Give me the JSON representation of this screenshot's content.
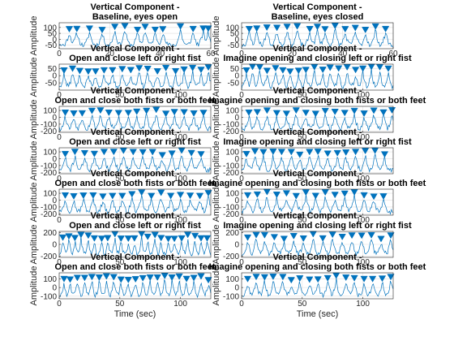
{
  "figure": {
    "colors": {
      "series": "#0072bd",
      "axis": "#262626",
      "grid": "#dfdfdf",
      "background": "#ffffff"
    },
    "marker_icon": "triangle-down-marker"
  },
  "chart_data": [
    {
      "type": "line",
      "col": 0,
      "row": 0,
      "title_lines": [
        "Vertical Component -",
        "Baseline, eyes open"
      ],
      "ylabel": "Amplitude",
      "xlabel": "",
      "xlim": [
        0,
        60
      ],
      "xticks": [
        0,
        20,
        40,
        60
      ],
      "ylim": [
        -80,
        140
      ],
      "yticks": [
        -50,
        0,
        50,
        100
      ],
      "grid": true,
      "seed": 11,
      "marker_times": [
        4,
        7,
        12,
        17,
        22,
        26,
        31,
        34,
        38,
        41,
        48,
        53,
        57,
        59
      ]
    },
    {
      "type": "line",
      "col": 1,
      "row": 0,
      "title_lines": [
        "Vertical Component -",
        "Baseline, eyes closed"
      ],
      "ylabel": "Amplitude",
      "xlabel": "",
      "xlim": [
        0,
        60
      ],
      "xticks": [
        0,
        20,
        40,
        60
      ],
      "ylim": [
        -80,
        140
      ],
      "yticks": [
        -50,
        0,
        50,
        100
      ],
      "grid": true,
      "seed": 23,
      "marker_times": [
        3,
        6,
        10,
        14,
        18,
        22,
        27,
        30,
        33,
        37,
        41,
        45,
        49,
        53,
        57
      ]
    },
    {
      "type": "line",
      "col": 0,
      "row": 1,
      "title_lines": [
        "Vertical Component -",
        "Open and close left or right fist"
      ],
      "ylabel": "Amplitude",
      "xlabel": "",
      "xlim": [
        0,
        125
      ],
      "xticks": [
        0,
        50,
        100
      ],
      "ylim": [
        -100,
        80
      ],
      "yticks": [
        -50,
        0,
        50
      ],
      "grid": true,
      "seed": 37,
      "marker_times": [
        4,
        11,
        17,
        24,
        30,
        37,
        44,
        52,
        59,
        66,
        73,
        81,
        88,
        96,
        103,
        110,
        117,
        123
      ]
    },
    {
      "type": "line",
      "col": 1,
      "row": 1,
      "title_lines": [
        "Vertical Component -",
        "Imagine opening and closing left or right fist"
      ],
      "ylabel": "Amplitude",
      "xlabel": "",
      "xlim": [
        0,
        125
      ],
      "xticks": [
        0,
        50,
        100
      ],
      "ylim": [
        -100,
        80
      ],
      "yticks": [
        -50,
        0,
        50
      ],
      "grid": true,
      "seed": 41,
      "marker_times": [
        4,
        9,
        15,
        21,
        28,
        34,
        40,
        47,
        53,
        60,
        67,
        73,
        80,
        87,
        94,
        100,
        107,
        114,
        121
      ]
    },
    {
      "type": "line",
      "col": 0,
      "row": 2,
      "title_lines": [
        "Vertical Component -",
        "Open and close both fists or both feet"
      ],
      "ylabel": "Amplitude",
      "xlabel": "",
      "xlim": [
        0,
        125
      ],
      "xticks": [
        0,
        50,
        100
      ],
      "ylim": [
        -220,
        160
      ],
      "yticks": [
        -200,
        -100,
        0,
        100
      ],
      "grid": true,
      "seed": 53,
      "marker_times": [
        5,
        12,
        19,
        27,
        34,
        41,
        49,
        57,
        64,
        72,
        80,
        88,
        95,
        103,
        111,
        119
      ]
    },
    {
      "type": "line",
      "col": 1,
      "row": 2,
      "title_lines": [
        "Vertical Component -",
        "Imagine opening and closing both fists or both feet"
      ],
      "ylabel": "Amplitude",
      "xlabel": "",
      "xlim": [
        0,
        125
      ],
      "xticks": [
        0,
        50,
        100
      ],
      "ylim": [
        -220,
        160
      ],
      "yticks": [
        -200,
        -100,
        0,
        100
      ],
      "grid": true,
      "seed": 67,
      "marker_times": [
        6,
        13,
        21,
        29,
        37,
        45,
        53,
        61,
        69,
        77,
        85,
        93,
        101,
        109,
        117,
        124
      ]
    },
    {
      "type": "line",
      "col": 0,
      "row": 3,
      "title_lines": [
        "Vertical Component -",
        "Open and close left or right fist"
      ],
      "ylabel": "Amplitude",
      "xlabel": "",
      "xlim": [
        0,
        125
      ],
      "xticks": [
        0,
        50,
        100
      ],
      "ylim": [
        -220,
        160
      ],
      "yticks": [
        -200,
        -100,
        0,
        100
      ],
      "grid": true,
      "seed": 71,
      "marker_times": [
        5,
        13,
        21,
        29,
        37,
        45,
        53,
        61,
        69,
        77,
        85,
        93,
        101,
        109,
        117
      ]
    },
    {
      "type": "line",
      "col": 1,
      "row": 3,
      "title_lines": [
        "Vertical Component -",
        "Imagine opening and closing left or right fist"
      ],
      "ylabel": "Amplitude",
      "xlabel": "",
      "xlim": [
        0,
        125
      ],
      "xticks": [
        0,
        50,
        100
      ],
      "ylim": [
        -220,
        160
      ],
      "yticks": [
        -200,
        -100,
        0,
        100
      ],
      "grid": true,
      "seed": 83,
      "marker_times": [
        4,
        11,
        18,
        26,
        33,
        41,
        48,
        56,
        63,
        71,
        79,
        86,
        94,
        102,
        110,
        118
      ]
    },
    {
      "type": "line",
      "col": 0,
      "row": 4,
      "title_lines": [
        "Vertical Component -",
        "Open and close both fists or both feet"
      ],
      "ylabel": "Amplitude",
      "xlabel": "",
      "xlim": [
        0,
        125
      ],
      "xticks": [
        0,
        50,
        100
      ],
      "ylim": [
        -220,
        160
      ],
      "yticks": [
        -200,
        -100,
        0,
        100
      ],
      "grid": true,
      "seed": 97,
      "marker_times": [
        5,
        12,
        20,
        28,
        36,
        44,
        52,
        60,
        68,
        76,
        84,
        92,
        100,
        108,
        116,
        123
      ]
    },
    {
      "type": "line",
      "col": 1,
      "row": 4,
      "title_lines": [
        "Vertical Component -",
        "Imagine opening and closing both fists or both feet"
      ],
      "ylabel": "Amplitude",
      "xlabel": "",
      "xlim": [
        0,
        125
      ],
      "xticks": [
        0,
        50,
        100
      ],
      "ylim": [
        -220,
        160
      ],
      "yticks": [
        -200,
        -100,
        0,
        100
      ],
      "grid": true,
      "seed": 101,
      "marker_times": [
        5,
        13,
        21,
        29,
        37,
        45,
        53,
        61,
        69,
        77,
        85,
        93,
        101,
        109,
        117
      ]
    },
    {
      "type": "line",
      "col": 0,
      "row": 5,
      "title_lines": [
        "Vertical Component -",
        "Open and close left or right fist"
      ],
      "ylabel": "Amplitude",
      "xlabel": "",
      "xlim": [
        0,
        125
      ],
      "xticks": [
        0,
        50,
        100
      ],
      "ylim": [
        -220,
        220
      ],
      "yticks": [
        -200,
        0,
        200
      ],
      "grid": true,
      "seed": 113,
      "marker_times": [
        3,
        8,
        13,
        18,
        24,
        29,
        35,
        40,
        46,
        51,
        57,
        62,
        68,
        73,
        79,
        84,
        90,
        95,
        101,
        106,
        112,
        117,
        122
      ]
    },
    {
      "type": "line",
      "col": 1,
      "row": 5,
      "title_lines": [
        "Vertical Component -",
        "Imagine opening and closing left or right fist"
      ],
      "ylabel": "Amplitude",
      "xlabel": "",
      "xlim": [
        0,
        125
      ],
      "xticks": [
        0,
        50,
        100
      ],
      "ylim": [
        -220,
        220
      ],
      "yticks": [
        -200,
        0,
        200
      ],
      "grid": true,
      "seed": 127,
      "marker_times": [
        5,
        12,
        19,
        27,
        35,
        43,
        51,
        59,
        67,
        75,
        83,
        91,
        99,
        107,
        115,
        123
      ]
    },
    {
      "type": "line",
      "col": 0,
      "row": 6,
      "title_lines": [
        "Vertical Component -",
        "Open and close both fists or both feet"
      ],
      "ylabel": "Amplitude",
      "xlabel": "Time (sec)",
      "xlim": [
        0,
        125
      ],
      "xticks": [
        0,
        50,
        100
      ],
      "ylim": [
        -130,
        170
      ],
      "yticks": [
        -100,
        0,
        100
      ],
      "grid": true,
      "seed": 131,
      "marker_times": [
        4,
        9,
        15,
        21,
        27,
        33,
        39,
        45,
        51,
        57,
        63,
        69,
        75,
        81,
        87,
        93,
        99,
        105,
        111,
        117,
        123
      ]
    },
    {
      "type": "line",
      "col": 1,
      "row": 6,
      "title_lines": [
        "Vertical Component -",
        "Imagine opening and closing both fists or both feet"
      ],
      "ylabel": "Amplitude",
      "xlabel": "Time (sec)",
      "xlim": [
        0,
        125
      ],
      "xticks": [
        0,
        50,
        100
      ],
      "ylim": [
        -130,
        170
      ],
      "yticks": [
        -100,
        0,
        100
      ],
      "grid": true,
      "seed": 137,
      "marker_times": [
        5,
        12,
        19,
        26,
        34,
        41,
        48,
        56,
        63,
        71,
        78,
        86,
        93,
        101,
        108,
        116,
        123
      ]
    }
  ]
}
